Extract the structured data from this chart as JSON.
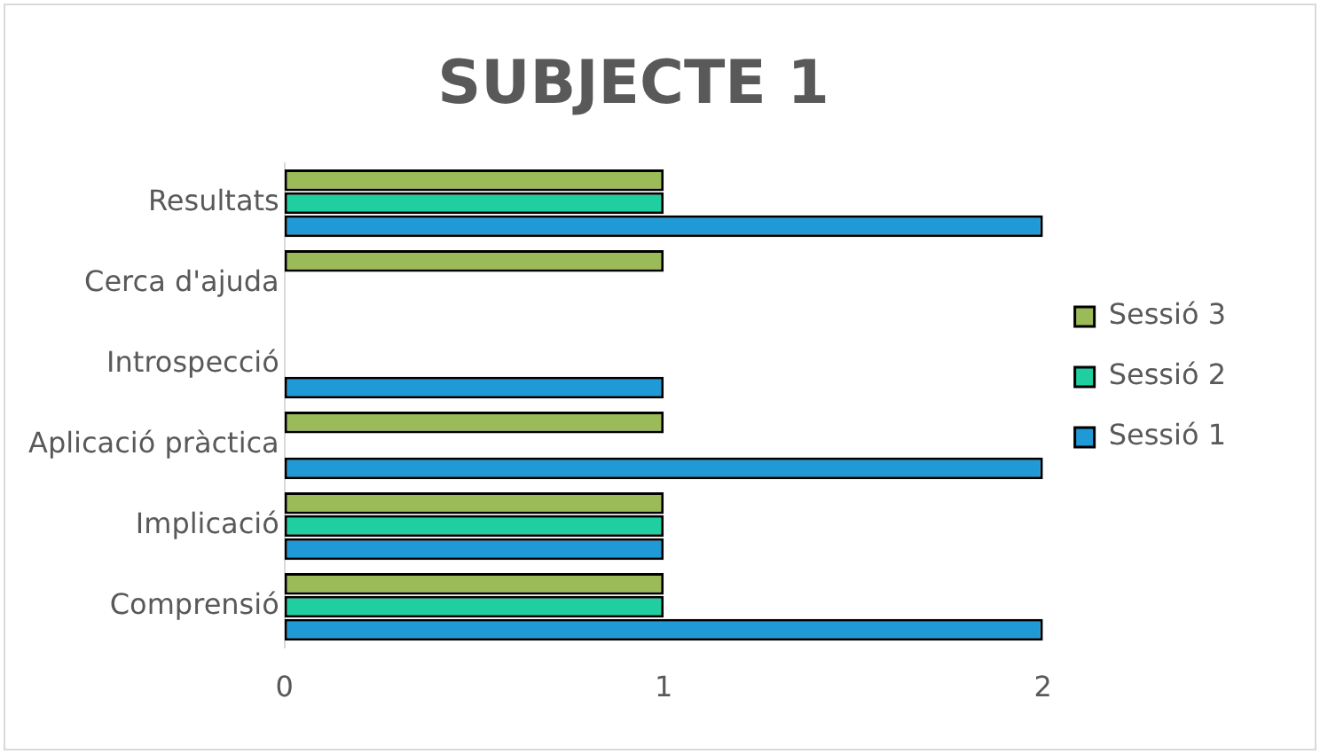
{
  "chart_data": {
    "type": "bar",
    "orientation": "horizontal",
    "title": "SUBJECTE 1",
    "categories": [
      "Resultats",
      "Cerca d'ajuda",
      "Introspecció",
      "Aplicació pràctica",
      "Implicació",
      "Comprensió"
    ],
    "series": [
      {
        "name": "Sessió 3",
        "color": "#9bbb59",
        "values": [
          1,
          1,
          null,
          1,
          1,
          1
        ]
      },
      {
        "name": "Sessió 2",
        "color": "#1fcf9f",
        "values": [
          1,
          null,
          null,
          null,
          1,
          1
        ]
      },
      {
        "name": "Sessió 1",
        "color": "#1f9ad6",
        "values": [
          2,
          null,
          1,
          2,
          1,
          2
        ]
      }
    ],
    "xlim": [
      0,
      2
    ],
    "xticks": [
      0,
      1,
      2
    ],
    "grid": false,
    "legend": "right"
  }
}
